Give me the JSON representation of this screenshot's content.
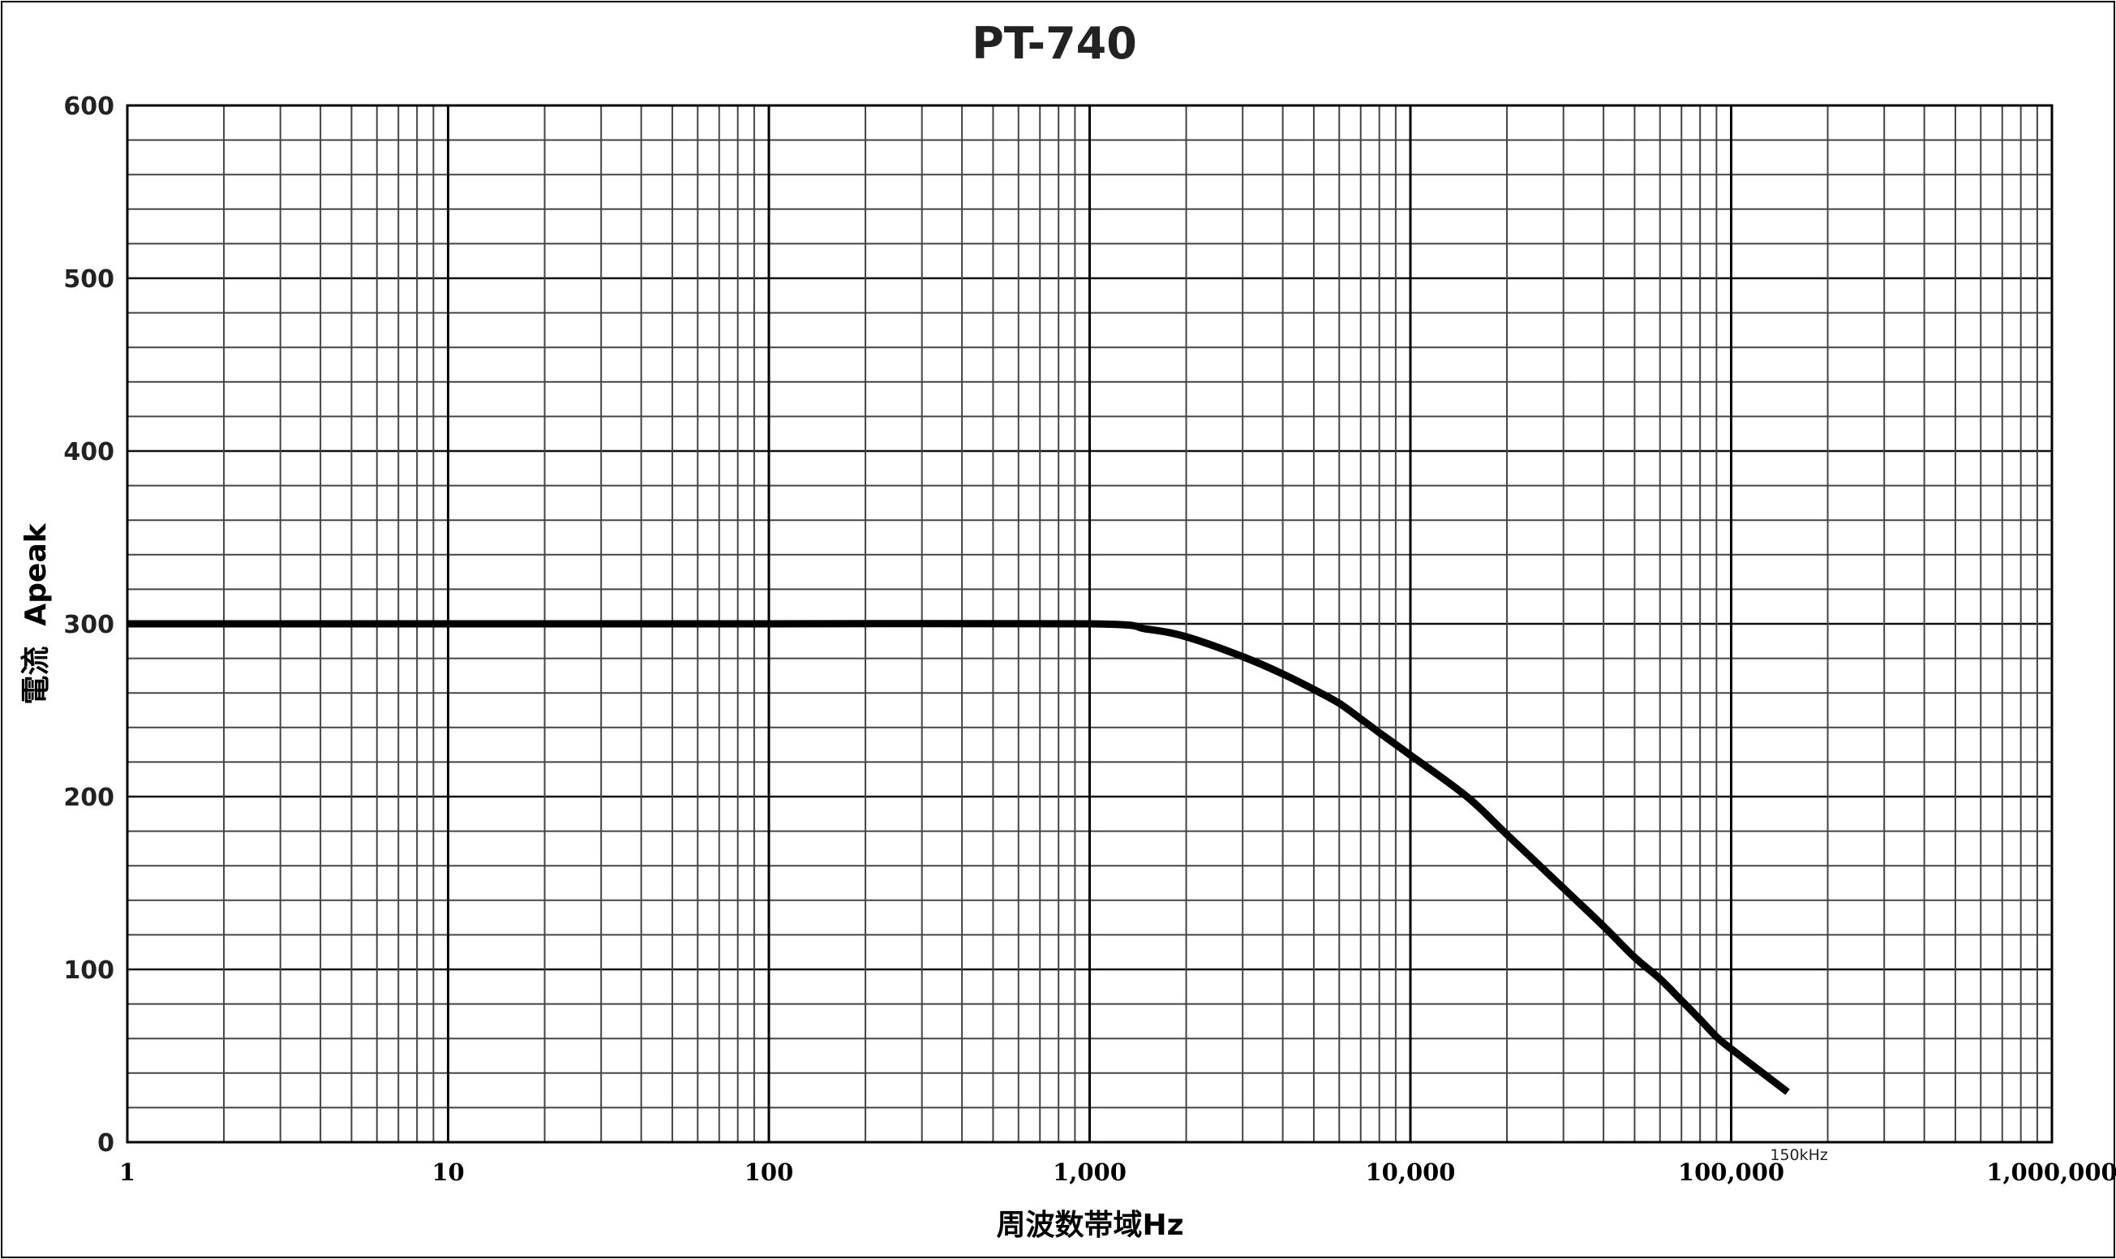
{
  "chart_data": {
    "type": "line",
    "title": "PT-740",
    "xlabel": "周波数帯域Hz",
    "ylabel": "電流  Apeak",
    "xscale": "log",
    "xlim": [
      1,
      1000000
    ],
    "ylim": [
      0,
      600
    ],
    "grid": true,
    "legend": null,
    "x_tick_labels": [
      "1",
      "10",
      "100",
      "1,000",
      "10,000",
      "100,000",
      "1,000,000"
    ],
    "x_ticks": [
      1,
      10,
      100,
      1000,
      10000,
      100000,
      1000000
    ],
    "y_tick_labels": [
      "0",
      "100",
      "200",
      "300",
      "400",
      "500",
      "600"
    ],
    "y_ticks": [
      0,
      100,
      200,
      300,
      400,
      500,
      600
    ],
    "y_minor_step": 20,
    "annotations": [
      {
        "text": "150kHz",
        "x": 150000,
        "y": 0
      }
    ],
    "series": [
      {
        "name": "PT-740",
        "color": "#000000",
        "x": [
          1,
          10,
          100,
          1000,
          1500,
          2000,
          3000,
          4000,
          5000,
          6000,
          7000,
          8000,
          10000,
          15000,
          20000,
          30000,
          40000,
          50000,
          60000,
          70000,
          80000,
          90000,
          100000,
          150000
        ],
        "y": [
          300,
          300,
          300,
          300,
          297,
          292.5,
          281,
          271,
          262,
          254,
          245,
          237,
          224,
          200,
          178,
          147,
          125,
          107,
          94.5,
          82,
          71,
          61,
          54,
          29
        ]
      }
    ]
  }
}
